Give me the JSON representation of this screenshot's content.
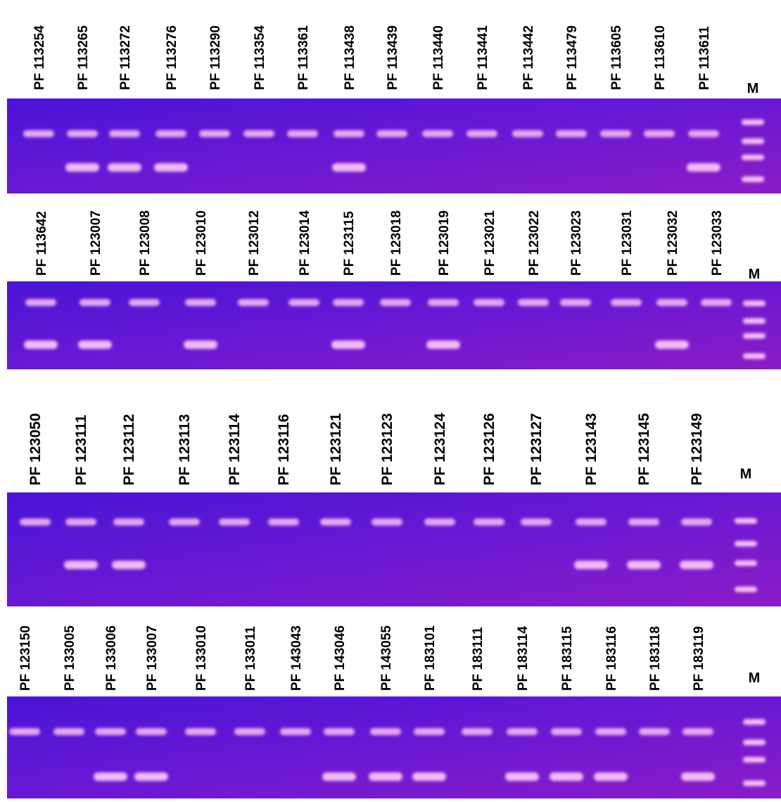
{
  "panels": [
    {
      "lanes": [
        "PF 113254",
        "PF 113265",
        "PF 113272",
        "PF 113276",
        "PF 113290",
        "PF 113354",
        "PF 113361",
        "PF 113438",
        "PF 113439",
        "PF 113440",
        "PF 113441",
        "PF 113442",
        "PF 113479",
        "PF 113605",
        "PF 113610",
        "PF 113611"
      ],
      "marker": "M"
    },
    {
      "lanes": [
        "PF 113642",
        "PF 123007",
        "PF 123008",
        "PF 123010",
        "PF 123012",
        "PF 123014",
        "PF 123115",
        "PF 123018",
        "PF 123019",
        "PF 123021",
        "PF 123022",
        "PF 123023",
        "PF 123031",
        "PF 123032",
        "PF 123033"
      ],
      "marker": "M"
    },
    {
      "lanes": [
        "PF 123050",
        "PF 123111",
        "PF 123112",
        "PF 123113",
        "PF 123114",
        "PF 123116",
        "PF 123121",
        "PF 123123",
        "PF 123124",
        "PF 123126",
        "PF 123127",
        "PF 123143",
        "PF 123145",
        "PF 123149"
      ],
      "marker": "M"
    },
    {
      "lanes": [
        "PF 123150",
        "PF 133005",
        "PF 133006",
        "PF 133007",
        "PF 133010",
        "PF 133011",
        "PF 143043",
        "PF 143046",
        "PF 143055",
        "PF 183101",
        "PF 183111",
        "PF 183114",
        "PF 183115",
        "PF 183116",
        "PF 183118",
        "PF 183119"
      ],
      "marker": "M"
    }
  ]
}
